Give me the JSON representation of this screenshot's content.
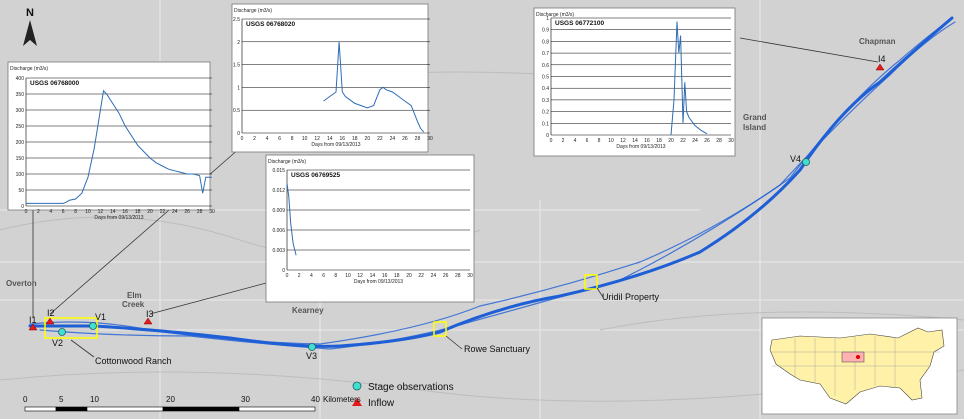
{
  "north_label": "N",
  "places": {
    "overton": "Overton",
    "elm_creek": "Elm\nCreek",
    "kearney": "Kearney",
    "grand_island": "Grand\nIsland",
    "chapman": "Chapman"
  },
  "sites": {
    "i1": "I1",
    "i2": "I2",
    "i3": "I3",
    "i4": "I4",
    "v1": "V1",
    "v2": "V2",
    "v3": "V3",
    "v4": "V4",
    "cottonwood": "Cottonwood Ranch",
    "rowe": "Rowe Sanctuary",
    "uridil": "Uridil Property"
  },
  "legend": {
    "stage": "Stage observations",
    "inflow": "Inflow"
  },
  "scale": {
    "ticks": [
      "0",
      "5",
      "10",
      "20",
      "30",
      "40"
    ],
    "unit": "Kilometers"
  },
  "colors": {
    "river": "#1f5fd6",
    "stage_marker": "#40e0d0",
    "inflow_marker": "#e41a1c",
    "highlight_box": "#ffff00"
  },
  "chart_data": [
    {
      "type": "line",
      "title": "USGS 06768000",
      "ylabel": "Discharge (m3/s)",
      "xlabel": "Days from 09/13/2013",
      "xlim": [
        0,
        30
      ],
      "ylim": [
        0,
        400
      ],
      "xticks": [
        0,
        2,
        4,
        6,
        8,
        10,
        12,
        14,
        16,
        18,
        20,
        22,
        24,
        26,
        28,
        30
      ],
      "yticks": [
        0,
        50,
        100,
        150,
        200,
        250,
        300,
        350,
        400
      ],
      "x": [
        0,
        6,
        6.5,
        7,
        8,
        9,
        10,
        11,
        12,
        12.5,
        13,
        14,
        15,
        16,
        17,
        18,
        19,
        20,
        21,
        22,
        23,
        24,
        25,
        26,
        27,
        28,
        28.5,
        29,
        29.5,
        30
      ],
      "y": [
        8,
        8,
        12,
        18,
        22,
        40,
        90,
        180,
        300,
        360,
        350,
        320,
        290,
        250,
        220,
        190,
        170,
        150,
        135,
        125,
        115,
        110,
        105,
        100,
        100,
        95,
        40,
        90,
        90,
        90
      ]
    },
    {
      "type": "line",
      "title": "USGS 06768020",
      "ylabel": "Discharge (m3/s)",
      "xlabel": "Days from 09/13/2013",
      "xlim": [
        0,
        30
      ],
      "ylim": [
        0,
        2.5
      ],
      "xticks": [
        0,
        2,
        4,
        6,
        8,
        10,
        12,
        14,
        16,
        18,
        20,
        22,
        24,
        26,
        28,
        30
      ],
      "yticks": [
        0,
        0.5,
        1,
        1.5,
        2,
        2.5
      ],
      "x": [
        13,
        14,
        15,
        15.5,
        16,
        16.5,
        17,
        18,
        19,
        20,
        21,
        22,
        22.5,
        23,
        24,
        25,
        26,
        27,
        28,
        28.5,
        29
      ],
      "y": [
        0.7,
        0.8,
        0.9,
        2.0,
        0.9,
        0.8,
        0.75,
        0.65,
        0.6,
        0.55,
        0.6,
        0.95,
        1.0,
        0.95,
        0.9,
        0.8,
        0.7,
        0.6,
        0.25,
        0.1,
        0.02
      ]
    },
    {
      "type": "line",
      "title": "USGS 06769525",
      "ylabel": "Discharge (m3/s)",
      "xlabel": "Days from 09/13/2013",
      "xlim": [
        0,
        30
      ],
      "ylim": [
        0,
        0.015
      ],
      "xticks": [
        0,
        2,
        4,
        6,
        8,
        10,
        12,
        14,
        16,
        18,
        20,
        22,
        24,
        26,
        28,
        30
      ],
      "yticks": [
        0,
        0.003,
        0.006,
        0.009,
        0.012,
        0.015
      ],
      "x": [
        0,
        0.3,
        0.6,
        1,
        1.5
      ],
      "y": [
        0.013,
        0.011,
        0.007,
        0.004,
        0.0022
      ]
    },
    {
      "type": "line",
      "title": "USGS 06772100",
      "ylabel": "Discharge (m3/s)",
      "xlabel": "Days from 09/13/2013",
      "xlim": [
        0,
        30
      ],
      "ylim": [
        0,
        1
      ],
      "xticks": [
        0,
        2,
        4,
        6,
        8,
        10,
        12,
        14,
        16,
        18,
        20,
        22,
        24,
        26,
        28,
        30
      ],
      "yticks": [
        0,
        0.1,
        0.2,
        0.3,
        0.4,
        0.5,
        0.6,
        0.7,
        0.8,
        0.9,
        1
      ],
      "x": [
        20,
        20.5,
        21,
        21.3,
        21.6,
        22,
        22.3,
        22.6,
        23,
        24,
        25,
        26
      ],
      "y": [
        0,
        0.3,
        0.97,
        0.7,
        0.85,
        0.1,
        0.45,
        0.2,
        0.15,
        0.08,
        0.04,
        0.01
      ]
    }
  ]
}
